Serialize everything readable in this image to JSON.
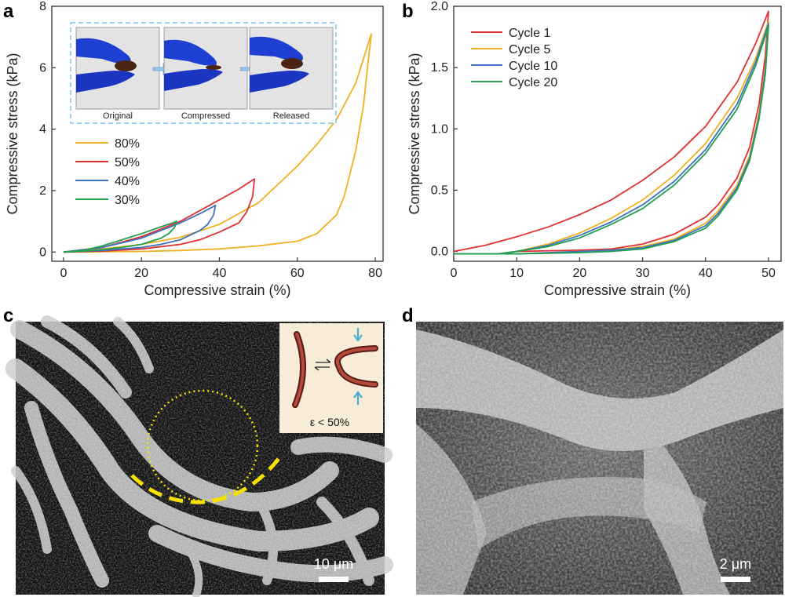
{
  "panels": {
    "a": "a",
    "b": "b",
    "c": "c",
    "d": "d"
  },
  "colors": {
    "cycle1": "#e03030",
    "cycle5": "#f0b020",
    "cycle10": "#4070c0",
    "cycle20": "#20a050",
    "inset_border": "#7ec3e6",
    "arrow_blue": "#4aaed0",
    "dashed_arc": "#f5e000",
    "fiber_brown": "#8a3028"
  },
  "inset_a": {
    "labels": [
      "Original",
      "Compressed",
      "Released"
    ]
  },
  "inset_c": {
    "label": "ε < 50%"
  },
  "scalebars": {
    "c": "10 μm",
    "d": "2 μm"
  },
  "chart_data": [
    {
      "panel": "a",
      "type": "line",
      "xlabel": "Compressive strain (%)",
      "ylabel": "Compressive stress (kPa)",
      "xlim": [
        -3,
        82
      ],
      "ylim": [
        -0.3,
        8
      ],
      "xticks": [
        0,
        20,
        40,
        60,
        80
      ],
      "yticks": [
        0,
        2,
        4,
        6,
        8
      ],
      "grid": false,
      "legend_position": "middle-left",
      "series": [
        {
          "name": "80%",
          "color": "#f0b020",
          "loading": [
            [
              0,
              0
            ],
            [
              10,
              0.1
            ],
            [
              20,
              0.25
            ],
            [
              30,
              0.48
            ],
            [
              40,
              0.9
            ],
            [
              50,
              1.6
            ],
            [
              55,
              2.2
            ],
            [
              60,
              2.8
            ],
            [
              65,
              3.5
            ],
            [
              70,
              4.3
            ],
            [
              75,
              5.5
            ],
            [
              78,
              6.7
            ],
            [
              79,
              7.1
            ]
          ],
          "unloading": [
            [
              79,
              7.1
            ],
            [
              78,
              6.0
            ],
            [
              77,
              4.8
            ],
            [
              75,
              3.3
            ],
            [
              72,
              1.8
            ],
            [
              70,
              1.2
            ],
            [
              65,
              0.6
            ],
            [
              60,
              0.35
            ],
            [
              50,
              0.2
            ],
            [
              40,
              0.1
            ],
            [
              30,
              0.05
            ],
            [
              20,
              0.02
            ],
            [
              10,
              0.01
            ],
            [
              0,
              0
            ]
          ]
        },
        {
          "name": "50%",
          "color": "#e03030",
          "loading": [
            [
              0,
              0
            ],
            [
              10,
              0.15
            ],
            [
              20,
              0.5
            ],
            [
              25,
              0.75
            ],
            [
              30,
              1.0
            ],
            [
              35,
              1.35
            ],
            [
              40,
              1.7
            ],
            [
              45,
              2.05
            ],
            [
              48,
              2.3
            ],
            [
              49,
              2.38
            ]
          ],
          "unloading": [
            [
              49,
              2.38
            ],
            [
              48.5,
              1.8
            ],
            [
              47,
              1.3
            ],
            [
              45,
              0.95
            ],
            [
              40,
              0.65
            ],
            [
              35,
              0.4
            ],
            [
              30,
              0.25
            ],
            [
              20,
              0.1
            ],
            [
              10,
              0.03
            ],
            [
              0,
              0
            ]
          ]
        },
        {
          "name": "40%",
          "color": "#4070c0",
          "loading": [
            [
              0,
              0
            ],
            [
              10,
              0.15
            ],
            [
              20,
              0.45
            ],
            [
              25,
              0.7
            ],
            [
              30,
              0.95
            ],
            [
              35,
              1.25
            ],
            [
              38,
              1.45
            ],
            [
              39,
              1.52
            ]
          ],
          "unloading": [
            [
              39,
              1.52
            ],
            [
              38.5,
              1.2
            ],
            [
              37,
              0.9
            ],
            [
              35,
              0.7
            ],
            [
              30,
              0.4
            ],
            [
              25,
              0.25
            ],
            [
              20,
              0.15
            ],
            [
              10,
              0.05
            ],
            [
              0,
              0
            ]
          ]
        },
        {
          "name": "30%",
          "color": "#20a050",
          "loading": [
            [
              0,
              0
            ],
            [
              5,
              0.05
            ],
            [
              10,
              0.2
            ],
            [
              15,
              0.4
            ],
            [
              20,
              0.6
            ],
            [
              25,
              0.82
            ],
            [
              28,
              0.95
            ],
            [
              29,
              1.0
            ]
          ],
          "unloading": [
            [
              29,
              1.0
            ],
            [
              28.5,
              0.8
            ],
            [
              27,
              0.6
            ],
            [
              25,
              0.45
            ],
            [
              20,
              0.25
            ],
            [
              15,
              0.15
            ],
            [
              10,
              0.08
            ],
            [
              5,
              0.03
            ],
            [
              0,
              0
            ]
          ]
        }
      ]
    },
    {
      "panel": "b",
      "type": "line",
      "xlabel": "Compressive strain (%)",
      "ylabel": "Compressive stress (kPa)",
      "xlim": [
        0,
        52
      ],
      "ylim": [
        -0.08,
        2.0
      ],
      "xticks": [
        0,
        10,
        20,
        30,
        40,
        50
      ],
      "yticks": [
        0.0,
        0.5,
        1.0,
        1.5,
        2.0
      ],
      "grid": false,
      "legend_position": "top-left",
      "series": [
        {
          "name": "Cycle 1",
          "color": "#e03030",
          "loading": [
            [
              0,
              0
            ],
            [
              5,
              0.05
            ],
            [
              10,
              0.12
            ],
            [
              15,
              0.2
            ],
            [
              20,
              0.3
            ],
            [
              25,
              0.42
            ],
            [
              30,
              0.58
            ],
            [
              35,
              0.77
            ],
            [
              40,
              1.02
            ],
            [
              45,
              1.38
            ],
            [
              48,
              1.7
            ],
            [
              50,
              1.96
            ]
          ],
          "unloading": [
            [
              50,
              1.96
            ],
            [
              49.5,
              1.6
            ],
            [
              48.5,
              1.2
            ],
            [
              47,
              0.85
            ],
            [
              45,
              0.6
            ],
            [
              42,
              0.38
            ],
            [
              40,
              0.28
            ],
            [
              35,
              0.14
            ],
            [
              30,
              0.06
            ],
            [
              25,
              0.02
            ],
            [
              20,
              0.01
            ],
            [
              10,
              0
            ],
            [
              7,
              -0.02
            ],
            [
              0,
              -0.02
            ]
          ]
        },
        {
          "name": "Cycle 5",
          "color": "#f0b020",
          "loading": [
            [
              0,
              -0.02
            ],
            [
              7,
              -0.02
            ],
            [
              10,
              0
            ],
            [
              15,
              0.06
            ],
            [
              20,
              0.15
            ],
            [
              25,
              0.27
            ],
            [
              30,
              0.42
            ],
            [
              35,
              0.62
            ],
            [
              40,
              0.88
            ],
            [
              45,
              1.25
            ],
            [
              48,
              1.58
            ],
            [
              50,
              1.88
            ]
          ],
          "unloading": [
            [
              50,
              1.88
            ],
            [
              49.5,
              1.5
            ],
            [
              48.5,
              1.12
            ],
            [
              47,
              0.78
            ],
            [
              45,
              0.54
            ],
            [
              42,
              0.33
            ],
            [
              40,
              0.23
            ],
            [
              35,
              0.1
            ],
            [
              30,
              0.04
            ],
            [
              25,
              0.01
            ],
            [
              20,
              0
            ],
            [
              10,
              -0.02
            ],
            [
              0,
              -0.02
            ]
          ]
        },
        {
          "name": "Cycle 10",
          "color": "#4070c0",
          "loading": [
            [
              0,
              -0.02
            ],
            [
              7,
              -0.02
            ],
            [
              10,
              0
            ],
            [
              15,
              0.05
            ],
            [
              20,
              0.13
            ],
            [
              25,
              0.24
            ],
            [
              30,
              0.38
            ],
            [
              35,
              0.57
            ],
            [
              40,
              0.83
            ],
            [
              45,
              1.2
            ],
            [
              48,
              1.55
            ],
            [
              50,
              1.86
            ]
          ],
          "unloading": [
            [
              50,
              1.86
            ],
            [
              49.5,
              1.48
            ],
            [
              48.5,
              1.1
            ],
            [
              47,
              0.76
            ],
            [
              45,
              0.52
            ],
            [
              42,
              0.31
            ],
            [
              40,
              0.21
            ],
            [
              35,
              0.09
            ],
            [
              30,
              0.03
            ],
            [
              25,
              0.01
            ],
            [
              20,
              0
            ],
            [
              10,
              -0.02
            ],
            [
              0,
              -0.02
            ]
          ]
        },
        {
          "name": "Cycle 20",
          "color": "#20a050",
          "loading": [
            [
              0,
              -0.02
            ],
            [
              7,
              -0.02
            ],
            [
              10,
              0
            ],
            [
              15,
              0.04
            ],
            [
              20,
              0.11
            ],
            [
              25,
              0.22
            ],
            [
              30,
              0.35
            ],
            [
              35,
              0.54
            ],
            [
              40,
              0.8
            ],
            [
              45,
              1.16
            ],
            [
              48,
              1.52
            ],
            [
              50,
              1.84
            ]
          ],
          "unloading": [
            [
              50,
              1.84
            ],
            [
              49.5,
              1.45
            ],
            [
              48.5,
              1.08
            ],
            [
              47,
              0.74
            ],
            [
              45,
              0.5
            ],
            [
              42,
              0.29
            ],
            [
              40,
              0.19
            ],
            [
              35,
              0.08
            ],
            [
              30,
              0.02
            ],
            [
              25,
              0
            ],
            [
              20,
              -0.01
            ],
            [
              10,
              -0.02
            ],
            [
              0,
              -0.02
            ]
          ]
        }
      ]
    }
  ]
}
